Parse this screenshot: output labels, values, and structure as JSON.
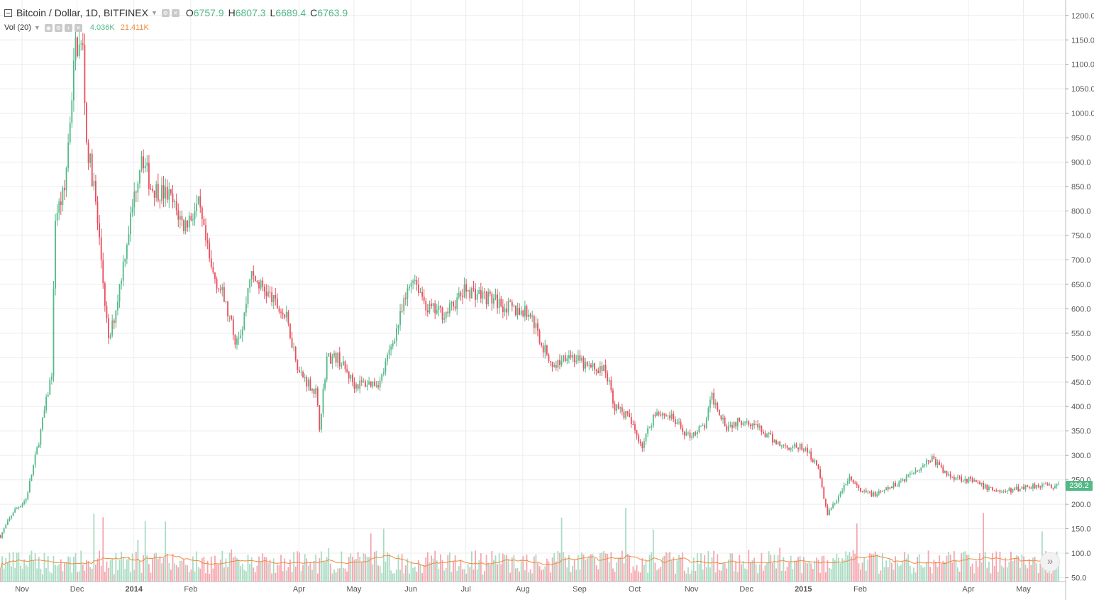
{
  "header": {
    "symbol": "Bitcoin / Dollar, 1D, BITFINEX",
    "open_label": "O",
    "open_value": "6757.9",
    "high_label": "H",
    "high_value": "6807.3",
    "low_label": "L",
    "low_value": "6689.4",
    "close_label": "C",
    "close_value": "6763.9"
  },
  "volume_legend": {
    "label": "Vol (20)",
    "value": "4.036K",
    "ma_value": "21.411K"
  },
  "last_price": "236.2",
  "icons": [
    "collapse-icon",
    "settings-icon",
    "close-icon",
    "scroll-to-latest-icon"
  ],
  "colors": {
    "up": "#53b987",
    "down": "#eb4d5c",
    "vol_up": "#a9dcc3",
    "vol_down": "#f5a6ae",
    "vol_ma": "#f08a3a",
    "grid": "#ececec"
  },
  "chart_data": {
    "type": "candlestick",
    "title": "Bitcoin / Dollar, 1D, BITFINEX",
    "price_axis": {
      "ticks": [
        "1200.0",
        "1150.0",
        "1100.0",
        "1050.0",
        "1000.0",
        "950.0",
        "900.0",
        "850.0",
        "800.0",
        "750.0",
        "700.0",
        "650.0",
        "600.0",
        "550.0",
        "500.0",
        "450.0",
        "400.0",
        "350.0",
        "300.0",
        "250.0",
        "200.0",
        "150.0",
        "100.0",
        "50.0"
      ],
      "ylim": [
        42,
        1220
      ]
    },
    "time_axis": {
      "ticks": [
        "Nov",
        "Dec",
        "2014",
        "Feb",
        "Apr",
        "May",
        "Jun",
        "Jul",
        "Aug",
        "Sep",
        "Oct",
        "Nov",
        "Dec",
        "2015",
        "Feb",
        "Apr",
        "May"
      ],
      "bold": [
        "2014",
        "2015"
      ]
    },
    "grid": true,
    "approx_daily_close": [
      {
        "date": "2013-10-20",
        "close": 135
      },
      {
        "date": "2013-10-27",
        "close": 185
      },
      {
        "date": "2013-11-03",
        "close": 210
      },
      {
        "date": "2013-11-10",
        "close": 330
      },
      {
        "date": "2013-11-17",
        "close": 470
      },
      {
        "date": "2013-11-19",
        "close": 790
      },
      {
        "date": "2013-11-24",
        "close": 840
      },
      {
        "date": "2013-11-30",
        "close": 1140
      },
      {
        "date": "2013-12-04",
        "close": 1130
      },
      {
        "date": "2013-12-06",
        "close": 940
      },
      {
        "date": "2013-12-10",
        "close": 850
      },
      {
        "date": "2013-12-14",
        "close": 700
      },
      {
        "date": "2013-12-18",
        "close": 530
      },
      {
        "date": "2013-12-22",
        "close": 600
      },
      {
        "date": "2013-12-28",
        "close": 740
      },
      {
        "date": "2014-01-05",
        "close": 920
      },
      {
        "date": "2014-01-10",
        "close": 850
      },
      {
        "date": "2014-01-20",
        "close": 830
      },
      {
        "date": "2014-01-28",
        "close": 770
      },
      {
        "date": "2014-02-05",
        "close": 810
      },
      {
        "date": "2014-02-12",
        "close": 680
      },
      {
        "date": "2014-02-18",
        "close": 630
      },
      {
        "date": "2014-02-25",
        "close": 540
      },
      {
        "date": "2014-03-01",
        "close": 560
      },
      {
        "date": "2014-03-05",
        "close": 670
      },
      {
        "date": "2014-03-15",
        "close": 630
      },
      {
        "date": "2014-03-25",
        "close": 580
      },
      {
        "date": "2014-04-01",
        "close": 470
      },
      {
        "date": "2014-04-10",
        "close": 430
      },
      {
        "date": "2014-04-12",
        "close": 360
      },
      {
        "date": "2014-04-16",
        "close": 500
      },
      {
        "date": "2014-04-22",
        "close": 500
      },
      {
        "date": "2014-05-01",
        "close": 445
      },
      {
        "date": "2014-05-15",
        "close": 450
      },
      {
        "date": "2014-05-25",
        "close": 570
      },
      {
        "date": "2014-06-02",
        "close": 670
      },
      {
        "date": "2014-06-10",
        "close": 600
      },
      {
        "date": "2014-06-20",
        "close": 590
      },
      {
        "date": "2014-07-01",
        "close": 640
      },
      {
        "date": "2014-07-15",
        "close": 620
      },
      {
        "date": "2014-07-25",
        "close": 600
      },
      {
        "date": "2014-08-05",
        "close": 590
      },
      {
        "date": "2014-08-12",
        "close": 520
      },
      {
        "date": "2014-08-18",
        "close": 480
      },
      {
        "date": "2014-08-25",
        "close": 510
      },
      {
        "date": "2014-09-05",
        "close": 480
      },
      {
        "date": "2014-09-15",
        "close": 475
      },
      {
        "date": "2014-09-20",
        "close": 400
      },
      {
        "date": "2014-09-27",
        "close": 380
      },
      {
        "date": "2014-10-05",
        "close": 320
      },
      {
        "date": "2014-10-12",
        "close": 390
      },
      {
        "date": "2014-10-20",
        "close": 380
      },
      {
        "date": "2014-10-30",
        "close": 340
      },
      {
        "date": "2014-11-08",
        "close": 360
      },
      {
        "date": "2014-11-12",
        "close": 420
      },
      {
        "date": "2014-11-20",
        "close": 360
      },
      {
        "date": "2014-12-01",
        "close": 375
      },
      {
        "date": "2014-12-12",
        "close": 340
      },
      {
        "date": "2014-12-20",
        "close": 320
      },
      {
        "date": "2015-01-01",
        "close": 315
      },
      {
        "date": "2015-01-08",
        "close": 285
      },
      {
        "date": "2015-01-14",
        "close": 180
      },
      {
        "date": "2015-01-20",
        "close": 215
      },
      {
        "date": "2015-01-26",
        "close": 255
      },
      {
        "date": "2015-02-01",
        "close": 225
      },
      {
        "date": "2015-02-10",
        "close": 220
      },
      {
        "date": "2015-02-20",
        "close": 240
      },
      {
        "date": "2015-03-05",
        "close": 275
      },
      {
        "date": "2015-03-12",
        "close": 295
      },
      {
        "date": "2015-03-20",
        "close": 260
      },
      {
        "date": "2015-04-01",
        "close": 250
      },
      {
        "date": "2015-04-10",
        "close": 235
      },
      {
        "date": "2015-04-20",
        "close": 225
      },
      {
        "date": "2015-05-01",
        "close": 235
      },
      {
        "date": "2015-05-10",
        "close": 240
      },
      {
        "date": "2015-05-20",
        "close": 236.2
      }
    ],
    "volume_ma": "Vol (20)"
  }
}
